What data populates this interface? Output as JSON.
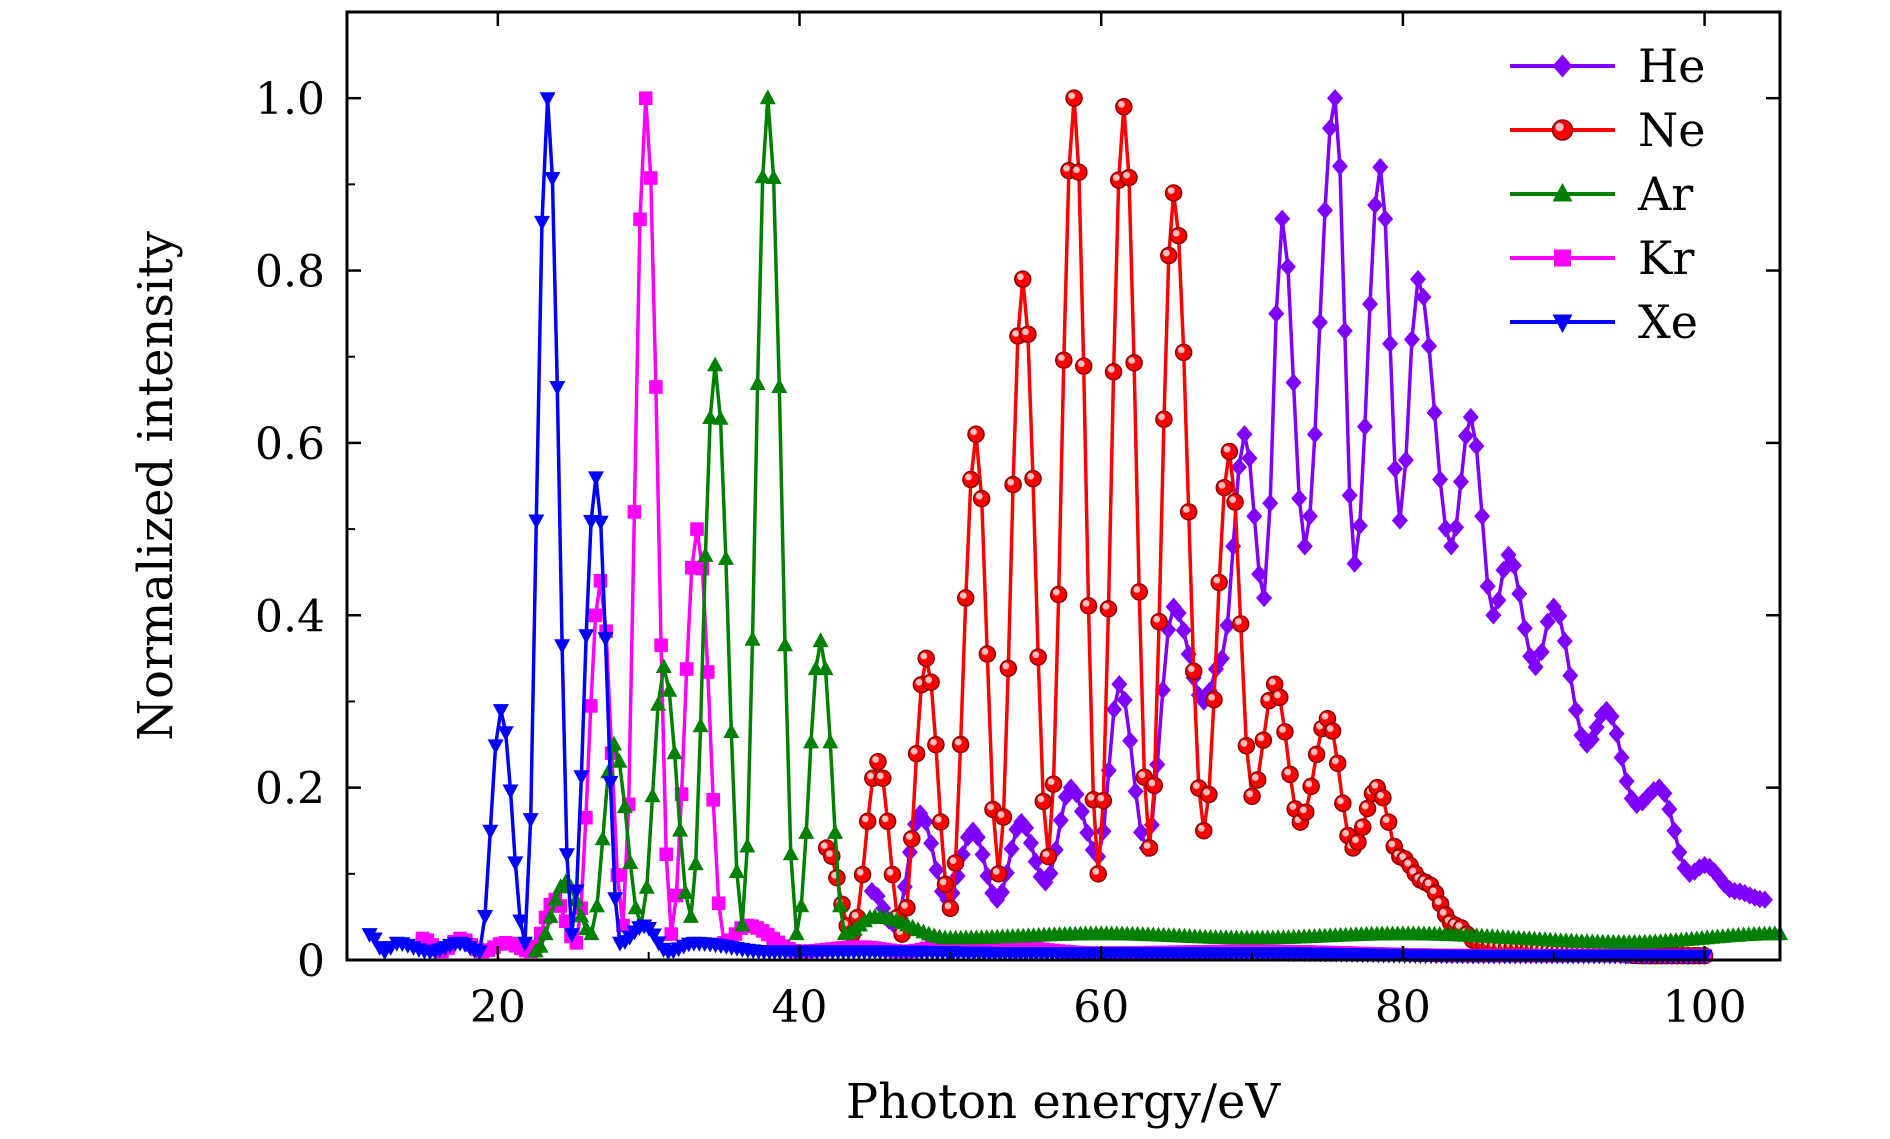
{
  "chart_data": {
    "type": "line",
    "title": "",
    "xlabel": "Photon energy/eV",
    "ylabel": "Normalized intensity",
    "xlim": [
      10,
      105
    ],
    "ylim": [
      0,
      1.1
    ],
    "xticks": [
      20,
      40,
      60,
      80,
      100
    ],
    "xtick_labels": [
      "20",
      "40",
      "60",
      "80",
      "100"
    ],
    "yticks": [
      0,
      0.2,
      0.4,
      0.6,
      0.8,
      1.0
    ],
    "ytick_labels": [
      "0",
      "0.2",
      "0.4",
      "0.6",
      "0.8",
      "1.0"
    ],
    "grid": false,
    "legend_position": "top-right",
    "series": [
      {
        "name": "He",
        "color": "#8000ff",
        "marker": "diamond",
        "peaks": [
          [
            44.8,
            0.08
          ],
          [
            48.0,
            0.17
          ],
          [
            51.5,
            0.15
          ],
          [
            54.7,
            0.16
          ],
          [
            58.0,
            0.2
          ],
          [
            61.2,
            0.32
          ],
          [
            64.8,
            0.41
          ],
          [
            68.0,
            0.35
          ],
          [
            69.5,
            0.61
          ],
          [
            72.0,
            0.86
          ],
          [
            75.5,
            1.0
          ],
          [
            78.5,
            0.92
          ],
          [
            81.0,
            0.79
          ],
          [
            84.5,
            0.63
          ],
          [
            87.0,
            0.47
          ],
          [
            90.0,
            0.41
          ],
          [
            93.5,
            0.29
          ],
          [
            97.0,
            0.2
          ],
          [
            100.0,
            0.11
          ],
          [
            104.0,
            0.07
          ]
        ],
        "valleys": [
          [
            46.3,
            0.04
          ],
          [
            49.8,
            0.07
          ],
          [
            53.1,
            0.07
          ],
          [
            56.3,
            0.09
          ],
          [
            59.8,
            0.12
          ],
          [
            63.0,
            0.13
          ],
          [
            66.8,
            0.3
          ],
          [
            70.8,
            0.42
          ],
          [
            73.5,
            0.48
          ],
          [
            76.8,
            0.46
          ],
          [
            79.8,
            0.51
          ],
          [
            83.2,
            0.48
          ],
          [
            86.0,
            0.4
          ],
          [
            88.8,
            0.34
          ],
          [
            92.2,
            0.25
          ],
          [
            95.5,
            0.18
          ],
          [
            99.0,
            0.1
          ],
          [
            102.0,
            0.08
          ]
        ]
      },
      {
        "name": "Ne",
        "color": "#ff0000",
        "marker": "circle",
        "peaks": [
          [
            41.8,
            0.13
          ],
          [
            45.2,
            0.23
          ],
          [
            48.4,
            0.35
          ],
          [
            51.7,
            0.61
          ],
          [
            54.8,
            0.79
          ],
          [
            58.2,
            1.0
          ],
          [
            61.5,
            0.99
          ],
          [
            64.8,
            0.89
          ],
          [
            68.5,
            0.59
          ],
          [
            71.5,
            0.32
          ],
          [
            75.0,
            0.28
          ],
          [
            78.3,
            0.2
          ],
          [
            81.5,
            0.09
          ],
          [
            85.0,
            0.02
          ],
          [
            88.0,
            0.015
          ],
          [
            92.0,
            0.01
          ],
          [
            100.0,
            0.005
          ]
        ],
        "valleys": [
          [
            43.5,
            0.03
          ],
          [
            46.8,
            0.03
          ],
          [
            50.0,
            0.06
          ],
          [
            53.2,
            0.1
          ],
          [
            56.5,
            0.12
          ],
          [
            59.8,
            0.1
          ],
          [
            63.2,
            0.13
          ],
          [
            66.8,
            0.15
          ],
          [
            70.0,
            0.19
          ],
          [
            73.2,
            0.16
          ],
          [
            76.7,
            0.13
          ],
          [
            79.8,
            0.12
          ],
          [
            83.5,
            0.04
          ],
          [
            86.5,
            0.015
          ],
          [
            90.0,
            0.01
          ],
          [
            96.0,
            0.005
          ]
        ]
      },
      {
        "name": "Ar",
        "color": "#008000",
        "marker": "triangle-up",
        "peaks": [
          [
            24.5,
            0.09
          ],
          [
            27.7,
            0.25
          ],
          [
            31.0,
            0.34
          ],
          [
            34.4,
            0.69
          ],
          [
            37.9,
            1.0
          ],
          [
            41.4,
            0.37
          ],
          [
            45.0,
            0.05
          ],
          [
            60.0,
            0.03
          ],
          [
            80.0,
            0.03
          ],
          [
            105.0,
            0.03
          ]
        ],
        "valleys": [
          [
            22.5,
            0.01
          ],
          [
            26.2,
            0.03
          ],
          [
            29.5,
            0.04
          ],
          [
            32.8,
            0.05
          ],
          [
            36.2,
            0.04
          ],
          [
            39.8,
            0.03
          ],
          [
            43.0,
            0.03
          ],
          [
            50.0,
            0.025
          ],
          [
            70.0,
            0.025
          ],
          [
            95.0,
            0.02
          ]
        ]
      },
      {
        "name": "Kr",
        "color": "#ff00ff",
        "marker": "square",
        "peaks": [
          [
            15.0,
            0.025
          ],
          [
            17.5,
            0.025
          ],
          [
            20.5,
            0.02
          ],
          [
            23.8,
            0.07
          ],
          [
            26.8,
            0.44
          ],
          [
            29.8,
            1.0
          ],
          [
            33.2,
            0.5
          ],
          [
            36.5,
            0.04
          ],
          [
            44.0,
            0.015
          ],
          [
            50.5,
            0.02
          ],
          [
            70.0,
            0.01
          ],
          [
            100.0,
            0.005
          ]
        ],
        "valleys": [
          [
            16.3,
            0.01
          ],
          [
            19.0,
            0.01
          ],
          [
            22.2,
            0.01
          ],
          [
            25.2,
            0.02
          ],
          [
            28.3,
            0.04
          ],
          [
            31.5,
            0.03
          ],
          [
            35.0,
            0.02
          ],
          [
            40.0,
            0.01
          ],
          [
            47.0,
            0.01
          ],
          [
            60.0,
            0.008
          ],
          [
            85.0,
            0.005
          ]
        ]
      },
      {
        "name": "Xe",
        "color": "#0000ff",
        "marker": "triangle-down",
        "peaks": [
          [
            11.5,
            0.03
          ],
          [
            13.3,
            0.02
          ],
          [
            17.5,
            0.02
          ],
          [
            20.2,
            0.29
          ],
          [
            23.3,
            1.0
          ],
          [
            26.5,
            0.56
          ],
          [
            29.7,
            0.04
          ],
          [
            33.0,
            0.02
          ],
          [
            45.0,
            0.01
          ],
          [
            70.0,
            0.008
          ],
          [
            100.0,
            0.005
          ]
        ],
        "valleys": [
          [
            12.5,
            0.01
          ],
          [
            15.5,
            0.01
          ],
          [
            18.8,
            0.01
          ],
          [
            21.8,
            0.02
          ],
          [
            24.9,
            0.03
          ],
          [
            28.1,
            0.02
          ],
          [
            31.3,
            0.01
          ],
          [
            38.0,
            0.01
          ],
          [
            55.0,
            0.008
          ],
          [
            85.0,
            0.005
          ]
        ]
      }
    ]
  }
}
